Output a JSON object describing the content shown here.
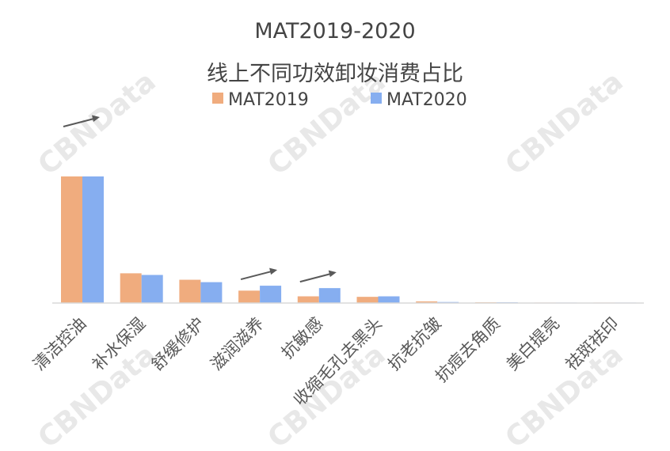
{
  "chart_data": {
    "type": "bar",
    "title": "MAT2019-2020",
    "subtitle": "线上不同功效卸妆消费占比",
    "categories": [
      "清洁控油",
      "补水保湿",
      "舒缓修护",
      "滋润滋养",
      "抗敏感",
      "收缩毛孔去黑头",
      "抗老抗皱",
      "抗痘去角质",
      "美白提亮",
      "祛斑祛印"
    ],
    "series": [
      {
        "name": "MAT2019",
        "color": "#F0AC7E",
        "values": [
          100,
          23.5,
          18.4,
          9.8,
          5.3,
          4.9,
          1.3,
          0.6,
          0.2,
          0.1
        ]
      },
      {
        "name": "MAT2020",
        "color": "#86AEF0",
        "values": [
          100,
          22.2,
          16.5,
          13.7,
          11.8,
          5.3,
          0.8,
          0.6,
          0.2,
          0.1
        ]
      }
    ],
    "ylim": [
      0,
      100
    ],
    "grid": false,
    "legend": "top-center",
    "trend_arrows": [
      "清洁控油",
      "滋润滋养",
      "抗敏感"
    ]
  },
  "watermark": "CBNData"
}
